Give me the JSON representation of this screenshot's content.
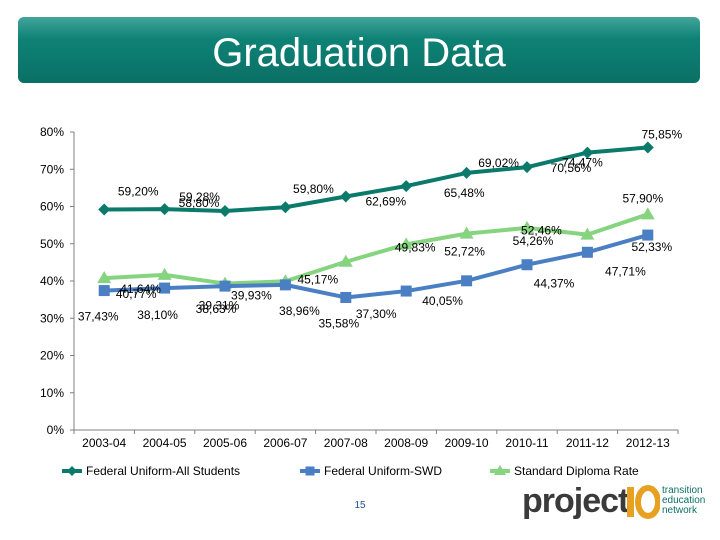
{
  "slide": {
    "title": "Graduation Data",
    "page_number": "15",
    "logo": {
      "word": "project",
      "mark": "IO",
      "tagline": [
        "transition",
        "education",
        "network"
      ]
    }
  },
  "colors": {
    "banner": "#0b7066",
    "federal_all": "#0b7a6b",
    "federal_swd": "#4a7fc4",
    "standard_diploma": "#86d47f",
    "axis_text": "#000000"
  },
  "chart_data": {
    "type": "line",
    "title": "",
    "xlabel": "",
    "ylabel": "",
    "ylim": [
      0,
      80
    ],
    "yticks": [
      "0%",
      "10%",
      "20%",
      "30%",
      "40%",
      "50%",
      "60%",
      "70%",
      "80%"
    ],
    "grid": false,
    "legend_position": "bottom",
    "categories": [
      "2003-04",
      "2004-05",
      "2005-06",
      "2006-07",
      "2007-08",
      "2008-09",
      "2009-10",
      "2010-11",
      "2011-12",
      "2012-13"
    ],
    "series": [
      {
        "name": "Federal Uniform-All Students",
        "color": "#0b7a6b",
        "marker": "diamond",
        "values": [
          59.2,
          59.28,
          58.8,
          59.8,
          62.69,
          65.48,
          69.02,
          70.56,
          74.47,
          75.85
        ],
        "labels": [
          "59,20%",
          "59,28%",
          "58,80%",
          "59,80%",
          "62,69%",
          "65,48%",
          "69,02%",
          "70,56%",
          "74,47%",
          "75,85%"
        ]
      },
      {
        "name": "Federal Uniform-SWD",
        "color": "#4a7fc4",
        "marker": "square",
        "values": [
          37.43,
          38.1,
          38.63,
          38.96,
          35.58,
          37.3,
          40.05,
          44.37,
          47.71,
          52.33
        ],
        "labels": [
          "37,43%",
          "38,10%",
          "38,63%",
          "38,96%",
          "35,58%",
          "37,30%",
          "40,05%",
          "44,37%",
          "47,71%",
          "52,33%"
        ]
      },
      {
        "name": "Standard Diploma Rate",
        "color": "#86d47f",
        "marker": "triangle",
        "values": [
          40.77,
          41.64,
          39.31,
          39.93,
          45.17,
          49.83,
          52.72,
          54.26,
          52.46,
          57.9
        ],
        "labels": [
          "40,77%",
          "41,64%",
          "39,31%",
          "39,93%",
          "45,17%",
          "49,83%",
          "52,72%",
          "54,26%",
          "52,46%",
          "57,90%"
        ]
      }
    ]
  }
}
